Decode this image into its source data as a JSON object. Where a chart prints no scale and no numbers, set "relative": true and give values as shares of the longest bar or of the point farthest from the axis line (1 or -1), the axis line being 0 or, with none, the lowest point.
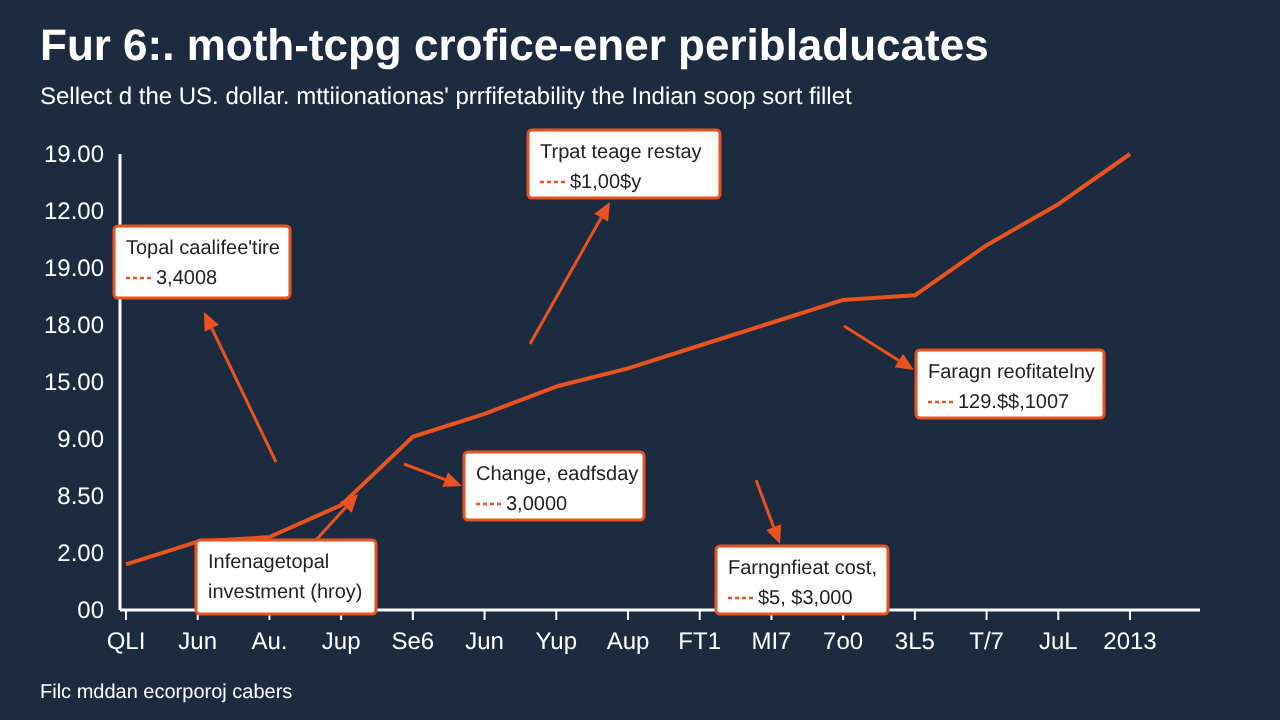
{
  "chart_data": {
    "type": "line",
    "title": "Fur 6:. moth-tcpg crofice-ener peribladucates",
    "subtitle": "Sellect d the US.  dollar. mttiionationas' prrfifetability the Indian soop sort fillet",
    "categories": [
      "QLI",
      "Jun",
      "Au.",
      "Jup",
      "Se6",
      "Jun",
      "Yup",
      "Aup",
      "FT1",
      "MI7",
      "7o0",
      "3L5",
      "T/7",
      "JuL",
      "2013"
    ],
    "series": [
      {
        "color": "#e8531f",
        "values": [
          0.1,
          0.15,
          0.16,
          0.23,
          0.38,
          0.43,
          0.49,
          0.53,
          0.58,
          0.63,
          0.68,
          0.69,
          0.8,
          0.89,
          1
        ]
      }
    ],
    "relative": true,
    "marker": "none",
    "line_style": "solid",
    "annotations": [
      "Topal caalifee'tire",
      "3,4008",
      "Trpat teage restay",
      "$1,00$y",
      "Change, eadfsday",
      "3,0000",
      "Infenagetopal",
      "investment (hroy)",
      "Faragn reofitatelny",
      "129.$$,1007",
      "Farngnfieat cost,",
      "$5, $3,000",
      "Filc mddan ecorporoj cabers",
      "00",
      "2.00",
      "8.50",
      "9.00",
      "15.00",
      "18.00",
      "19.00",
      "12.00",
      "19.00"
    ]
  }
}
